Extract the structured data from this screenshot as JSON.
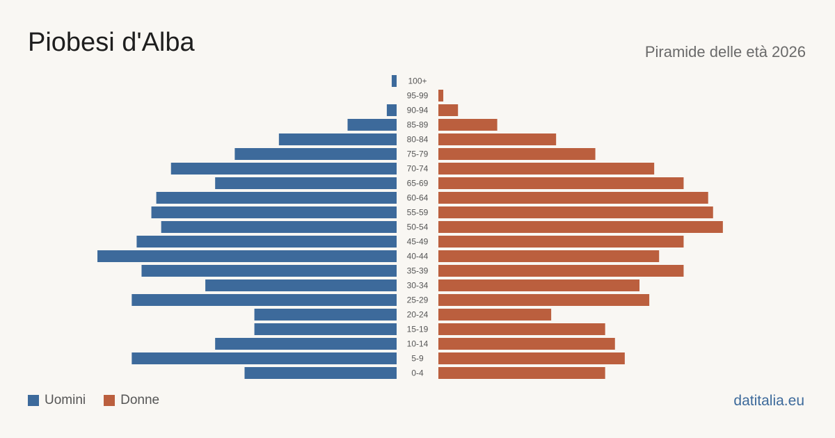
{
  "header": {
    "title": "Piobesi d'Alba",
    "subtitle": "Piramide delle età 2026"
  },
  "footer": {
    "source": "datitalia.eu"
  },
  "colors": {
    "male": "#3d6a9b",
    "female": "#bb5f3e",
    "background": "#f9f7f3",
    "tick_label": "#555555"
  },
  "legend": {
    "male_label": "Uomini",
    "female_label": "Donne"
  },
  "chart_data": {
    "type": "bar",
    "orientation": "horizontal-population-pyramid",
    "categories": [
      "100+",
      "95-99",
      "90-94",
      "85-89",
      "80-84",
      "75-79",
      "70-74",
      "65-69",
      "60-64",
      "55-59",
      "50-54",
      "45-49",
      "40-44",
      "35-39",
      "30-34",
      "25-29",
      "20-24",
      "15-19",
      "10-14",
      "5-9",
      "0-4"
    ],
    "series": [
      {
        "name": "Uomini",
        "values": [
          1,
          0,
          2,
          10,
          24,
          33,
          46,
          37,
          49,
          50,
          48,
          53,
          61,
          52,
          39,
          54,
          29,
          29,
          37,
          54,
          31
        ]
      },
      {
        "name": "Donne",
        "values": [
          0,
          1,
          4,
          12,
          24,
          32,
          44,
          50,
          55,
          56,
          58,
          50,
          45,
          50,
          41,
          43,
          23,
          34,
          36,
          38,
          34
        ]
      }
    ],
    "xlim": [
      0,
      61
    ],
    "grid": false,
    "legend_position": "bottom-left"
  }
}
